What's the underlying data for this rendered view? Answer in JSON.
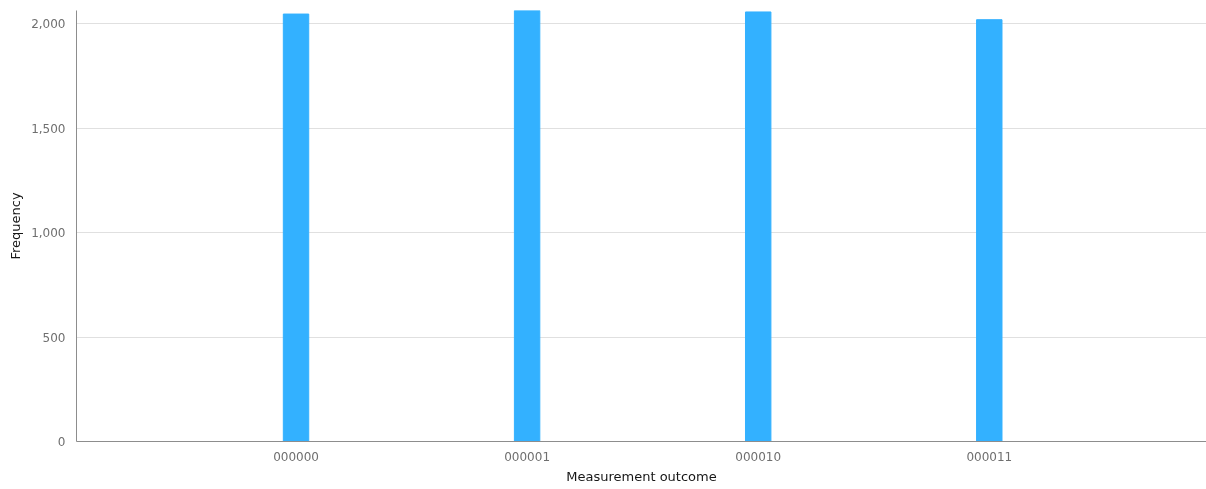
{
  "chart_data": {
    "type": "bar",
    "xlabel": "Measurement outcome",
    "ylabel": "Frequency",
    "categories": [
      "000000",
      "000001",
      "000010",
      "000011"
    ],
    "values": [
      2046,
      2063,
      2056,
      2019
    ],
    "color": "#33b1ff",
    "ylim": [
      0,
      2063
    ],
    "yticks": [
      {
        "value": 0,
        "label": "0"
      },
      {
        "value": 500,
        "label": "500"
      },
      {
        "value": 1000,
        "label": "1,000"
      },
      {
        "value": 1500,
        "label": "1,500"
      },
      {
        "value": 2000,
        "label": "2,000"
      }
    ],
    "grid": "y"
  }
}
